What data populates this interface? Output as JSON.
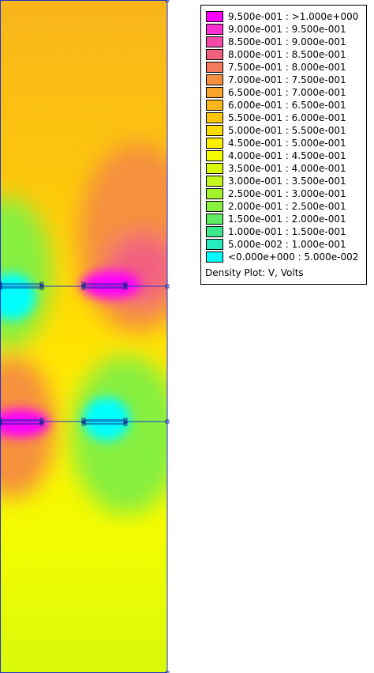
{
  "plot": {
    "quantity": "V",
    "units": "Volts",
    "colors": {
      "boundary": "#2233cc",
      "conductor": "#0a2a8a"
    }
  },
  "legend": {
    "title": "Density Plot: V, Volts",
    "entries": [
      {
        "label": "9.500e-001 : >1.000e+000",
        "color": "#ff00ff"
      },
      {
        "label": "9.000e-001 : 9.500e-001",
        "color": "#fb2fd4"
      },
      {
        "label": "8.500e-001 : 9.000e-001",
        "color": "#f64aa8"
      },
      {
        "label": "8.000e-001 : 8.500e-001",
        "color": "#f2607f"
      },
      {
        "label": "7.500e-001 : 8.000e-001",
        "color": "#f37a5a"
      },
      {
        "label": "7.000e-001 : 7.500e-001",
        "color": "#f6903e"
      },
      {
        "label": "6.500e-001 : 7.000e-001",
        "color": "#f9a42a"
      },
      {
        "label": "6.000e-001 : 6.500e-001",
        "color": "#f8b51c"
      },
      {
        "label": "5.500e-001 : 6.000e-001",
        "color": "#fcc60c"
      },
      {
        "label": "5.000e-001 : 5.500e-001",
        "color": "#ffdb03"
      },
      {
        "label": "4.500e-001 : 5.000e-001",
        "color": "#ffee00"
      },
      {
        "label": "4.000e-001 : 4.500e-001",
        "color": "#f3fc00"
      },
      {
        "label": "3.500e-001 : 4.000e-001",
        "color": "#d9fa0b"
      },
      {
        "label": "3.000e-001 : 3.500e-001",
        "color": "#c2f51c"
      },
      {
        "label": "2.500e-001 : 3.000e-001",
        "color": "#a3f22e"
      },
      {
        "label": "2.000e-001 : 2.500e-001",
        "color": "#86ef40"
      },
      {
        "label": "1.500e-001 : 2.000e-001",
        "color": "#5eec62"
      },
      {
        "label": "1.000e-001 : 1.500e-001",
        "color": "#3de88c"
      },
      {
        "label": "5.000e-002 : 1.000e-001",
        "color": "#26ecc0"
      },
      {
        "label": "<0.000e+000 : 5.000e-002",
        "color": "#00ffff"
      }
    ]
  }
}
